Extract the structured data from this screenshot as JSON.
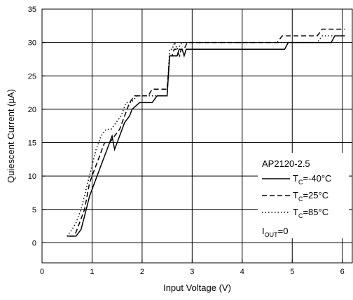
{
  "chart_data": {
    "type": "line",
    "xlabel": "Input Voltage (V)",
    "ylabel": "Quiescent Current (µA)",
    "xlim": [
      0,
      6.2
    ],
    "ylim": [
      -3,
      35
    ],
    "xticks": [
      0,
      1,
      2,
      3,
      4,
      5,
      6
    ],
    "yticks": [
      0,
      5,
      10,
      15,
      20,
      25,
      30,
      35
    ],
    "grid": true,
    "legend": {
      "placement": "right",
      "title": "AP2120-2.5",
      "footer_main": "I",
      "footer_sub": "OUT",
      "footer_rest": "=0"
    },
    "series": [
      {
        "name_main": "T",
        "name_sub": "C",
        "name_rest": "=-40°C",
        "style": "solid",
        "x": [
          0.5,
          0.68,
          0.78,
          0.85,
          0.95,
          1.05,
          1.2,
          1.3,
          1.4,
          1.45,
          1.55,
          1.65,
          1.75,
          1.8,
          1.95,
          2.05,
          2.1,
          2.2,
          2.3,
          2.5,
          2.55,
          2.58,
          2.62,
          2.7,
          2.74,
          2.8,
          2.84,
          2.88,
          2.92,
          3.0,
          4.0,
          4.85,
          4.92,
          5.2,
          5.7,
          5.78,
          5.85,
          6.05
        ],
        "y": [
          1,
          1,
          2,
          4,
          7,
          9,
          12,
          14,
          16,
          14,
          16,
          18,
          19,
          20,
          21,
          21,
          21,
          21,
          22,
          22,
          28,
          28,
          28,
          28,
          29,
          29,
          28,
          29,
          29,
          29,
          29,
          29,
          30,
          30,
          30,
          30,
          31,
          31
        ]
      },
      {
        "name_main": "T",
        "name_sub": "C",
        "name_rest": "=25°C",
        "style": "dashed",
        "x": [
          0.55,
          0.65,
          0.75,
          0.85,
          0.95,
          1.05,
          1.15,
          1.25,
          1.35,
          1.45,
          1.55,
          1.65,
          1.75,
          1.85,
          1.95,
          2.05,
          2.12,
          2.2,
          2.3,
          2.5,
          2.55,
          2.6,
          2.64,
          2.68,
          2.75,
          2.78,
          2.84,
          2.9,
          3.0,
          4.0,
          4.7,
          4.8,
          5.0,
          5.5,
          5.6,
          5.7,
          6.05
        ],
        "y": [
          1,
          1,
          3,
          5,
          9,
          11,
          13,
          15,
          15,
          16,
          17,
          19,
          21,
          22,
          22,
          22,
          22,
          23,
          23,
          23,
          28,
          28,
          29,
          29,
          28,
          29,
          29,
          30,
          30,
          30,
          30,
          31,
          31,
          31,
          32,
          32,
          32
        ]
      },
      {
        "name_main": "T",
        "name_sub": "C",
        "name_rest": "=85°C",
        "style": "dotted",
        "x": [
          0.5,
          0.6,
          0.68,
          0.78,
          0.88,
          0.98,
          1.08,
          1.18,
          1.28,
          1.38,
          1.48,
          1.58,
          1.68,
          1.78,
          1.9,
          2.0,
          2.1,
          2.2,
          2.3,
          2.5,
          2.55,
          2.6,
          2.65,
          2.7,
          2.8,
          2.9,
          3.0,
          4.0,
          4.5,
          4.6,
          5.0,
          5.5,
          5.6,
          6.05
        ],
        "y": [
          1,
          2,
          3,
          5,
          8,
          11,
          14,
          16,
          17,
          17,
          18,
          19,
          21,
          21,
          22,
          22,
          22,
          22,
          22,
          22,
          29,
          29,
          30,
          29,
          30,
          30,
          30,
          30,
          30,
          30,
          30,
          30,
          31,
          31
        ]
      }
    ]
  }
}
